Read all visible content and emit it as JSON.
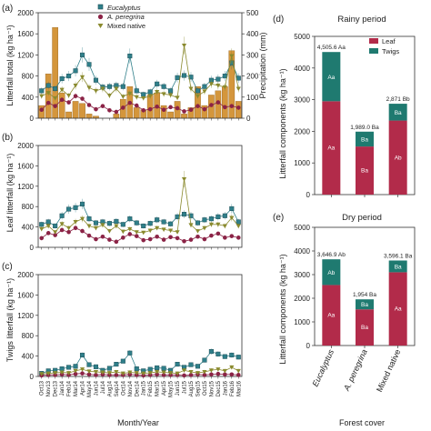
{
  "panel_labels": [
    "(a)",
    "(b)",
    "(c)",
    "(d)",
    "(e)"
  ],
  "axis_titles": {
    "a_left": "Litterfall total (kg ha⁻¹)",
    "a_right": "Precipitation (mm)",
    "b_left": "Leaf litterfall (kg ha⁻¹)",
    "c_left": "Twigs litterfall (kg ha⁻¹)",
    "x_bottom": "Month/Year",
    "d_left": "Litterfall components (kg ha⁻¹)",
    "e_left": "Litterfall components (kg ha⁻¹)",
    "forest_cover": "Forest cover"
  },
  "titles": {
    "d": "Rainy period",
    "e": "Dry period"
  },
  "legend_left": [
    "Eucalyptus",
    "A. peregrina",
    "Mixed native"
  ],
  "legend_right": [
    "Leaf",
    "Twigs"
  ],
  "colors": {
    "eucalyptus": "#2f7f8a",
    "peregrina": "#8b2346",
    "mixed": "#8a8a2e",
    "precip_bar": "#d4963c",
    "leaf": "#b22b4a",
    "twigs": "#1f7a70"
  },
  "chart_data": [
    {
      "id": "a",
      "type": "line",
      "categories": [
        "Oct13",
        "Nov13",
        "Dec13",
        "Jan14",
        "Feb14",
        "Mar14",
        "Apr14",
        "May14",
        "Jun14",
        "Jul14",
        "Aug14",
        "Sep14",
        "Oct14",
        "Nov14",
        "Dec14",
        "Jan15",
        "Feb15",
        "Mar15",
        "Apr15",
        "May15",
        "Jun15",
        "Jul15",
        "Aug15",
        "Sep15",
        "Oct15",
        "Nov15",
        "Dec15",
        "Jan16",
        "Feb16",
        "Mar16"
      ],
      "ylim": [
        0,
        2000
      ],
      "yticks": [
        0,
        400,
        800,
        1200,
        1600,
        2000
      ],
      "y2lim": [
        0,
        500
      ],
      "y2ticks": [
        0,
        100,
        200,
        300,
        400,
        500
      ],
      "series": [
        {
          "name": "Eucalyptus",
          "values": [
            520,
            620,
            560,
            750,
            800,
            900,
            1200,
            1020,
            720,
            590,
            600,
            620,
            600,
            1180,
            520,
            450,
            500,
            650,
            600,
            520,
            770,
            810,
            780,
            520,
            600,
            720,
            740,
            800,
            1050,
            760
          ]
        },
        {
          "name": "A. peregrina",
          "values": [
            160,
            290,
            230,
            350,
            300,
            420,
            370,
            250,
            170,
            230,
            150,
            120,
            200,
            290,
            240,
            150,
            170,
            220,
            160,
            210,
            190,
            130,
            160,
            230,
            170,
            250,
            300,
            210,
            230,
            200
          ]
        },
        {
          "name": "Mixed native",
          "values": [
            420,
            480,
            380,
            540,
            430,
            620,
            780,
            580,
            520,
            560,
            430,
            560,
            410,
            470,
            400,
            380,
            420,
            500,
            460,
            440,
            390,
            1380,
            560,
            420,
            510,
            650,
            620,
            590,
            1180,
            560
          ]
        }
      ],
      "precipitation": [
        60,
        210,
        430,
        120,
        30,
        80,
        70,
        20,
        10,
        0,
        0,
        20,
        90,
        150,
        50,
        40,
        110,
        120,
        60,
        30,
        80,
        20,
        50,
        150,
        60,
        110,
        130,
        150,
        320,
        80
      ]
    },
    {
      "id": "b",
      "type": "line",
      "categories": [
        "Oct13",
        "Nov13",
        "Dec13",
        "Jan14",
        "Feb14",
        "Mar14",
        "Apr14",
        "May14",
        "Jun14",
        "Jul14",
        "Aug14",
        "Sep14",
        "Oct14",
        "Nov14",
        "Dec14",
        "Jan15",
        "Feb15",
        "Mar15",
        "Apr15",
        "May15",
        "Jun15",
        "Jul15",
        "Aug15",
        "Sep15",
        "Oct15",
        "Nov15",
        "Dec15",
        "Jan16",
        "Feb16",
        "Mar16"
      ],
      "ylim": [
        0,
        2000
      ],
      "yticks": [
        0,
        400,
        800,
        1200,
        1600,
        2000
      ],
      "series": [
        {
          "name": "Eucalyptus",
          "values": [
            450,
            500,
            420,
            620,
            750,
            780,
            850,
            560,
            480,
            500,
            470,
            510,
            450,
            560,
            480,
            420,
            470,
            540,
            500,
            460,
            600,
            650,
            620,
            480,
            540,
            560,
            600,
            620,
            760,
            500
          ]
        },
        {
          "name": "A. peregrina",
          "values": [
            180,
            280,
            240,
            340,
            300,
            380,
            320,
            230,
            160,
            210,
            150,
            110,
            190,
            260,
            220,
            140,
            160,
            210,
            150,
            200,
            180,
            120,
            150,
            210,
            160,
            230,
            270,
            190,
            220,
            190
          ]
        },
        {
          "name": "Mixed native",
          "values": [
            360,
            420,
            300,
            460,
            380,
            500,
            560,
            420,
            380,
            440,
            320,
            420,
            310,
            360,
            300,
            290,
            330,
            380,
            350,
            330,
            300,
            1340,
            440,
            320,
            380,
            450,
            450,
            420,
            580,
            420
          ]
        }
      ]
    },
    {
      "id": "c",
      "type": "line",
      "categories": [
        "Oct13",
        "Nov13",
        "Dec13",
        "Jan14",
        "Feb14",
        "Mar14",
        "Apr14",
        "May14",
        "Jun14",
        "Jul14",
        "Aug14",
        "Sep14",
        "Oct14",
        "Nov14",
        "Dec14",
        "Jan15",
        "Feb15",
        "Mar15",
        "Apr15",
        "May15",
        "Jun15",
        "Jul15",
        "Aug15",
        "Sep15",
        "Oct15",
        "Nov15",
        "Dec15",
        "Jan16",
        "Feb16",
        "Mar16"
      ],
      "ylim": [
        0,
        2000
      ],
      "yticks": [
        0,
        400,
        800,
        1200,
        1600,
        2000
      ],
      "series": [
        {
          "name": "Eucalyptus",
          "values": [
            60,
            110,
            120,
            150,
            180,
            200,
            420,
            230,
            190,
            120,
            160,
            240,
            300,
            460,
            150,
            110,
            140,
            170,
            160,
            120,
            240,
            180,
            230,
            200,
            320,
            490,
            440,
            390,
            420,
            380
          ]
        },
        {
          "name": "A. peregrina",
          "values": [
            20,
            30,
            30,
            40,
            30,
            50,
            60,
            40,
            30,
            40,
            30,
            30,
            30,
            40,
            30,
            20,
            30,
            40,
            30,
            30,
            30,
            20,
            30,
            40,
            30,
            40,
            50,
            40,
            40,
            30
          ]
        },
        {
          "name": "Mixed native",
          "values": [
            50,
            60,
            70,
            80,
            70,
            110,
            140,
            100,
            90,
            80,
            70,
            90,
            60,
            80,
            70,
            60,
            70,
            90,
            80,
            70,
            60,
            120,
            90,
            70,
            90,
            120,
            140,
            110,
            180,
            110
          ]
        }
      ]
    },
    {
      "id": "d",
      "type": "bar",
      "title": "Rainy period",
      "categories": [
        "Eucalyptus",
        "A. peregrina",
        "Mixed native"
      ],
      "ylim": [
        0,
        5000
      ],
      "yticks": [
        0,
        1000,
        2000,
        3000,
        4000,
        5000
      ],
      "series": [
        {
          "name": "Leaf",
          "values": [
            2950,
            1520,
            2340
          ],
          "labels": [
            "Aa",
            "Ba",
            "Ab"
          ]
        },
        {
          "name": "Twigs",
          "values": [
            1555.6,
            469,
            531.1
          ],
          "labels": [
            "Aa",
            "Ba",
            "Ba"
          ]
        }
      ],
      "totals": [
        "4,505.6 Aa",
        "1,989.0 Ba",
        "2,871 Bb"
      ]
    },
    {
      "id": "e",
      "type": "bar",
      "title": "Dry period",
      "categories": [
        "Eucalyptus",
        "A. peregrina",
        "Mixed native"
      ],
      "ylim": [
        0,
        5000
      ],
      "yticks": [
        0,
        1000,
        2000,
        3000,
        4000,
        5000
      ],
      "series": [
        {
          "name": "Leaf",
          "values": [
            2560,
            1530,
            3100
          ],
          "labels": [
            "Aa",
            "Ba",
            "Aa"
          ]
        },
        {
          "name": "Twigs",
          "values": [
            1086.9,
            424,
            496.1
          ],
          "labels": [
            "Ab",
            "Ba",
            "Ba"
          ]
        }
      ],
      "totals": [
        "3,646.9 Ab",
        "1,954 Ba",
        "3,596.1 Ba"
      ]
    }
  ]
}
